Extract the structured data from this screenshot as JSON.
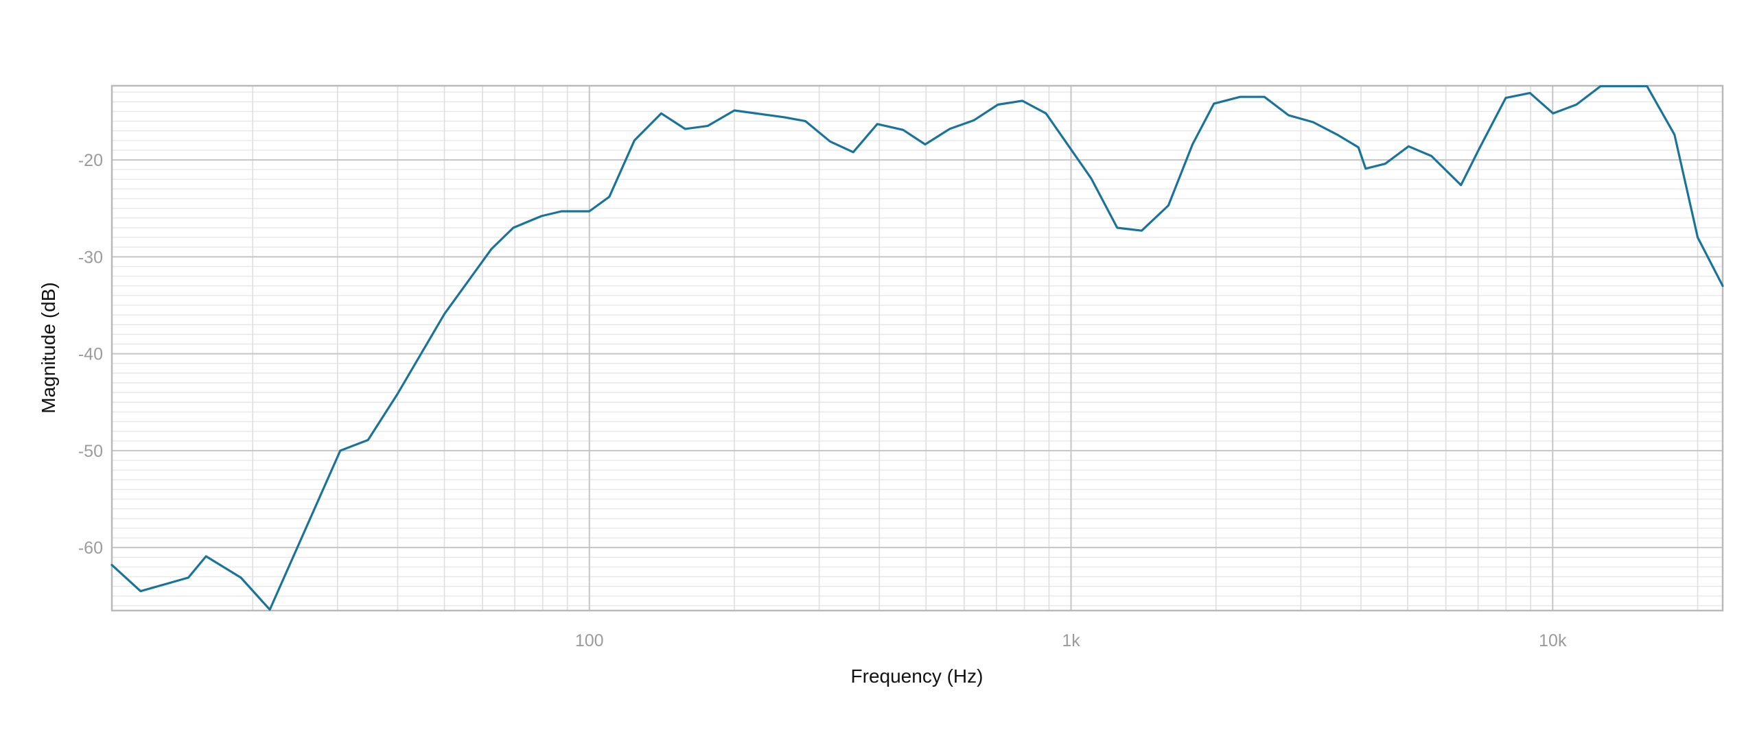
{
  "figure": {
    "background": "#ffffff",
    "accent_color": "#1a7499"
  },
  "chart_data": {
    "type": "line",
    "title": "",
    "xlabel": "Frequency (Hz)",
    "ylabel": "Magnitude (dB)",
    "x_scale": "log",
    "y_scale": "linear",
    "xlim": [
      10.2,
      22540
    ],
    "ylim": [
      -66.5,
      -12.35
    ],
    "grid": {
      "major": true,
      "minor": true,
      "minor_y_step_db": 1
    },
    "legend": "none",
    "x_major_ticks": [
      {
        "value": 100,
        "label": "100"
      },
      {
        "value": 1000,
        "label": "1k"
      },
      {
        "value": 10000,
        "label": "10k"
      }
    ],
    "y_major_ticks": [
      {
        "value": -20,
        "label": "-20"
      },
      {
        "value": -30,
        "label": "-30"
      },
      {
        "value": -40,
        "label": "-40"
      },
      {
        "value": -50,
        "label": "-50"
      },
      {
        "value": -60,
        "label": "-60"
      }
    ],
    "series": [
      {
        "name": "magnitude-response",
        "color": "#1a7499",
        "points": [
          [
            10.2,
            -61.8
          ],
          [
            11.7,
            -64.5
          ],
          [
            14.7,
            -63.1
          ],
          [
            16.0,
            -60.9
          ],
          [
            18.9,
            -63.1
          ],
          [
            21.7,
            -66.4
          ],
          [
            30.4,
            -50.0
          ],
          [
            34.7,
            -48.9
          ],
          [
            39.9,
            -44.2
          ],
          [
            50,
            -35.9
          ],
          [
            62.6,
            -29.2
          ],
          [
            69.5,
            -27.0
          ],
          [
            79.5,
            -25.8
          ],
          [
            87.5,
            -25.3
          ],
          [
            100,
            -25.3
          ],
          [
            110,
            -23.8
          ],
          [
            124,
            -18.0
          ],
          [
            141,
            -15.2
          ],
          [
            158,
            -16.8
          ],
          [
            176,
            -16.5
          ],
          [
            200,
            -14.9
          ],
          [
            254,
            -15.6
          ],
          [
            281,
            -16.0
          ],
          [
            316,
            -18.1
          ],
          [
            353,
            -19.2
          ],
          [
            396,
            -16.3
          ],
          [
            448,
            -16.9
          ],
          [
            498,
            -18.4
          ],
          [
            560,
            -16.8
          ],
          [
            629,
            -15.9
          ],
          [
            705,
            -14.3
          ],
          [
            792,
            -13.9
          ],
          [
            887,
            -15.2
          ],
          [
            1101,
            -21.9
          ],
          [
            1247,
            -27.0
          ],
          [
            1402,
            -27.3
          ],
          [
            1593,
            -24.7
          ],
          [
            1787,
            -18.4
          ],
          [
            1980,
            -14.2
          ],
          [
            2245,
            -13.5
          ],
          [
            2520,
            -13.5
          ],
          [
            2830,
            -15.4
          ],
          [
            3180,
            -16.1
          ],
          [
            3570,
            -17.4
          ],
          [
            3950,
            -18.7
          ],
          [
            4090,
            -20.9
          ],
          [
            4490,
            -20.4
          ],
          [
            5020,
            -18.6
          ],
          [
            5600,
            -19.6
          ],
          [
            6450,
            -22.6
          ],
          [
            7030,
            -18.9
          ],
          [
            7990,
            -13.6
          ],
          [
            8970,
            -13.1
          ],
          [
            10020,
            -15.2
          ],
          [
            11200,
            -14.3
          ],
          [
            12570,
            -12.4
          ],
          [
            15700,
            -12.4
          ],
          [
            17900,
            -17.4
          ],
          [
            20000,
            -28.0
          ],
          [
            22540,
            -33.0
          ]
        ]
      }
    ]
  }
}
